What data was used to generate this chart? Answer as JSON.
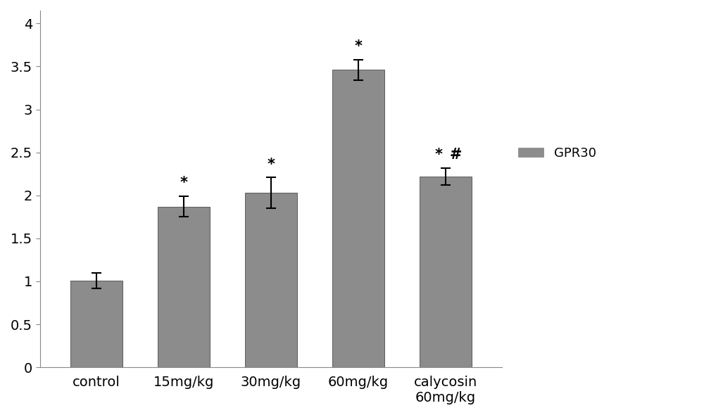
{
  "categories": [
    "control",
    "15mg/kg",
    "30mg/kg",
    "60mg/kg",
    "calycosin\n60mg/kg"
  ],
  "values": [
    1.01,
    1.87,
    2.03,
    3.46,
    2.22
  ],
  "errors": [
    0.09,
    0.12,
    0.18,
    0.12,
    0.1
  ],
  "bar_color": "#8c8c8c",
  "bar_edgecolor": "#4a4a4a",
  "annotations": [
    "",
    "*",
    "*",
    "*",
    "*#"
  ],
  "ylim": [
    0,
    4.15
  ],
  "ytick_values": [
    0,
    0.5,
    1.0,
    1.5,
    2.0,
    2.5,
    3.0,
    3.5,
    4.0
  ],
  "ytick_labels": [
    "0",
    "0.5",
    "1",
    "1.5",
    "2",
    "2.5",
    "3",
    "3.5",
    "4"
  ],
  "legend_label": "GPR30",
  "legend_color": "#8c8c8c",
  "bar_width": 0.6,
  "annotation_fontsize": 15,
  "tick_fontsize": 14,
  "legend_fontsize": 13,
  "spine_color": "#888888"
}
